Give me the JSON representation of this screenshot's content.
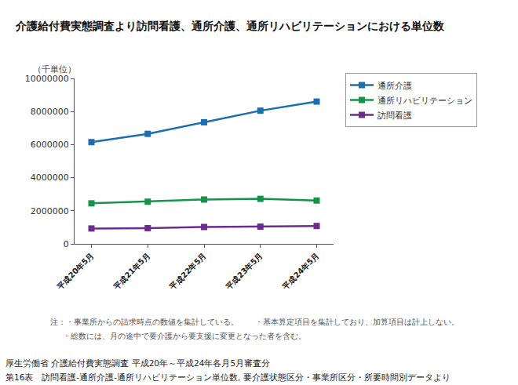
{
  "chart_data": {
    "type": "line",
    "title": "介護給付費実態調査より訪問看護、通所介護、通所リハビリテーションにおける単位数",
    "y_label": "（千単位）",
    "categories": [
      "平成20年5月",
      "平成21年5月",
      "平成22年5月",
      "平成23年5月",
      "平成24年5月"
    ],
    "series": [
      {
        "name": "通所介護",
        "color": "#1a6fb0",
        "marker": "square",
        "values": [
          6150000,
          6650000,
          7350000,
          8050000,
          8600000
        ]
      },
      {
        "name": "通所リハビリテーション",
        "color": "#16934a",
        "marker": "square",
        "values": [
          2450000,
          2550000,
          2680000,
          2720000,
          2620000
        ]
      },
      {
        "name": "訪問看護",
        "color": "#6a2c91",
        "marker": "square",
        "values": [
          930000,
          950000,
          1020000,
          1040000,
          1080000
        ]
      }
    ],
    "ylim": [
      0,
      10000000
    ],
    "yticks": [
      0,
      2000000,
      4000000,
      6000000,
      8000000,
      10000000
    ],
    "grid": false,
    "legend": "right",
    "notes": [
      "注：・事業所からの請求時点の数値を集計している。",
      "・基本算定項目を集計しており、加算項目は計上しない。",
      "・総数には、月の途中で要介護から要支援に変更となった者を含む。"
    ],
    "source": [
      "厚生労働省 介護給付費実態調査 平成20年～平成24年各月5月審査分",
      "第16表　訪問看護-通所介護-通所リハビリテーション単位数, 要介護状態区分・事業所区分・所要時間別データより"
    ]
  }
}
